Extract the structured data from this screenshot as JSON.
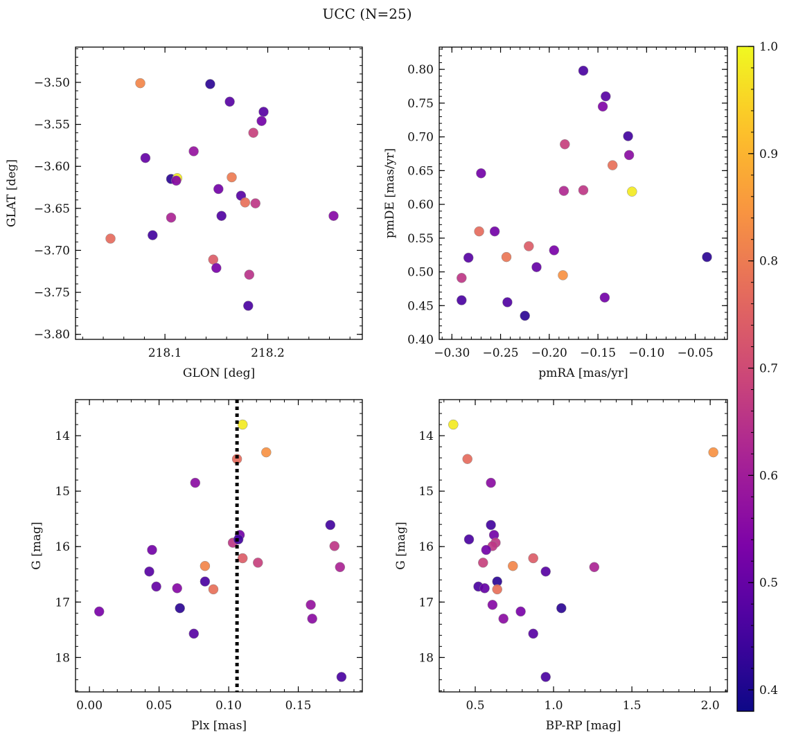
{
  "figure_title": "UCC (N=25)",
  "colorbar": {
    "min": 0.38,
    "max": 1.0,
    "ticks": [
      0.4,
      0.5,
      0.6,
      0.7,
      0.8,
      0.9,
      1.0
    ],
    "colormap": "plasma"
  },
  "chart_data": [
    {
      "type": "scatter",
      "xlabel": "GLON [deg]",
      "ylabel": "GLAT [deg]",
      "xlim": [
        218.013,
        218.292
      ],
      "ylim": [
        -3.806,
        -3.458
      ],
      "xticks": [
        218.1,
        218.2
      ],
      "yticks": [
        -3.5,
        -3.55,
        -3.6,
        -3.65,
        -3.7,
        -3.75,
        -3.8
      ],
      "x": [
        218.076,
        218.144,
        218.163,
        218.196,
        218.194,
        218.186,
        218.081,
        218.128,
        218.106,
        218.112,
        218.111,
        218.152,
        218.165,
        218.174,
        218.155,
        218.178,
        218.188,
        218.264,
        218.106,
        218.088,
        218.047,
        218.147,
        218.15,
        218.182,
        218.181
      ],
      "y": [
        -3.501,
        -3.502,
        -3.523,
        -3.535,
        -3.546,
        -3.56,
        -3.59,
        -3.582,
        -3.615,
        -3.614,
        -3.617,
        -3.627,
        -3.613,
        -3.635,
        -3.659,
        -3.643,
        -3.644,
        -3.659,
        -3.661,
        -3.682,
        -3.686,
        -3.711,
        -3.721,
        -3.729,
        -3.766
      ],
      "c": [
        0.82,
        0.42,
        0.48,
        0.48,
        0.52,
        0.68,
        0.5,
        0.58,
        0.42,
        0.98,
        0.55,
        0.52,
        0.8,
        0.48,
        0.47,
        0.78,
        0.66,
        0.55,
        0.62,
        0.45,
        0.77,
        0.74,
        0.53,
        0.65,
        0.46
      ]
    },
    {
      "type": "scatter",
      "xlabel": "pmRA [mas/yr]",
      "ylabel": "pmDE [mas/yr]",
      "xlim": [
        -0.313,
        -0.017
      ],
      "ylim": [
        0.4,
        0.833
      ],
      "xticks": [
        -0.3,
        -0.25,
        -0.2,
        -0.15,
        -0.1,
        -0.05
      ],
      "yticks": [
        0.4,
        0.45,
        0.5,
        0.55,
        0.6,
        0.65,
        0.7,
        0.75,
        0.8
      ],
      "x": [
        -0.165,
        -0.142,
        -0.145,
        -0.119,
        -0.184,
        -0.118,
        -0.135,
        -0.27,
        -0.185,
        -0.165,
        -0.115,
        -0.272,
        -0.256,
        -0.221,
        -0.195,
        -0.283,
        -0.244,
        -0.213,
        -0.038,
        -0.186,
        -0.29,
        -0.143,
        -0.29,
        -0.243,
        -0.225
      ],
      "y": [
        0.798,
        0.76,
        0.745,
        0.701,
        0.689,
        0.673,
        0.658,
        0.646,
        0.62,
        0.621,
        0.619,
        0.56,
        0.56,
        0.538,
        0.532,
        0.521,
        0.522,
        0.507,
        0.522,
        0.495,
        0.491,
        0.462,
        0.458,
        0.455,
        0.435
      ],
      "c": [
        0.46,
        0.48,
        0.54,
        0.45,
        0.68,
        0.56,
        0.78,
        0.52,
        0.63,
        0.66,
        0.98,
        0.77,
        0.52,
        0.74,
        0.53,
        0.48,
        0.79,
        0.5,
        0.42,
        0.84,
        0.66,
        0.52,
        0.46,
        0.47,
        0.42
      ]
    },
    {
      "type": "scatter",
      "xlabel": "Plx [mas]",
      "ylabel": "G [mag]",
      "xlim": [
        -0.01,
        0.196
      ],
      "ylim": [
        18.62,
        13.35
      ],
      "y_inverted": true,
      "xticks": [
        0.0,
        0.05,
        0.1,
        0.15
      ],
      "yticks": [
        14,
        15,
        16,
        17,
        18
      ],
      "vline": {
        "x": 0.106,
        "style": "dotted",
        "color": "#000000"
      },
      "x": [
        0.11,
        0.127,
        0.106,
        0.076,
        0.173,
        0.108,
        0.176,
        0.103,
        0.045,
        0.11,
        0.121,
        0.083,
        0.18,
        0.043,
        0.083,
        0.048,
        0.063,
        0.089,
        0.159,
        0.007,
        0.065,
        0.16,
        0.075,
        0.181,
        0.107
      ],
      "y": [
        13.8,
        14.3,
        14.42,
        14.85,
        15.61,
        15.79,
        15.99,
        15.93,
        16.06,
        16.21,
        16.29,
        16.35,
        16.37,
        16.45,
        16.63,
        16.72,
        16.75,
        16.77,
        17.05,
        17.17,
        17.11,
        17.3,
        17.57,
        18.35,
        15.87
      ],
      "c": [
        0.98,
        0.84,
        0.77,
        0.56,
        0.45,
        0.52,
        0.66,
        0.66,
        0.52,
        0.74,
        0.68,
        0.82,
        0.62,
        0.48,
        0.46,
        0.5,
        0.55,
        0.78,
        0.58,
        0.53,
        0.42,
        0.56,
        0.48,
        0.46,
        0.45
      ]
    },
    {
      "type": "scatter",
      "xlabel": "BP-RP [mag]",
      "ylabel": "G [mag]",
      "xlim": [
        0.27,
        2.11
      ],
      "ylim": [
        18.62,
        13.35
      ],
      "y_inverted": true,
      "xticks": [
        0.5,
        1.0,
        1.5,
        2.0
      ],
      "yticks": [
        14,
        15,
        16,
        17,
        18
      ],
      "x": [
        0.36,
        2.02,
        0.45,
        0.6,
        0.6,
        0.62,
        0.63,
        0.46,
        0.61,
        0.57,
        0.87,
        0.55,
        0.74,
        1.26,
        0.95,
        0.64,
        0.52,
        0.56,
        0.64,
        0.61,
        0.79,
        1.05,
        0.68,
        0.87,
        0.95
      ],
      "y": [
        13.8,
        14.3,
        14.42,
        14.85,
        15.61,
        15.79,
        15.93,
        15.87,
        15.99,
        16.06,
        16.21,
        16.29,
        16.35,
        16.37,
        16.45,
        16.63,
        16.72,
        16.75,
        16.77,
        17.05,
        17.17,
        17.11,
        17.3,
        17.57,
        18.35
      ],
      "c": [
        0.98,
        0.84,
        0.77,
        0.56,
        0.45,
        0.52,
        0.66,
        0.46,
        0.66,
        0.52,
        0.74,
        0.68,
        0.82,
        0.62,
        0.48,
        0.42,
        0.46,
        0.5,
        0.78,
        0.55,
        0.53,
        0.42,
        0.56,
        0.48,
        0.46
      ]
    }
  ]
}
